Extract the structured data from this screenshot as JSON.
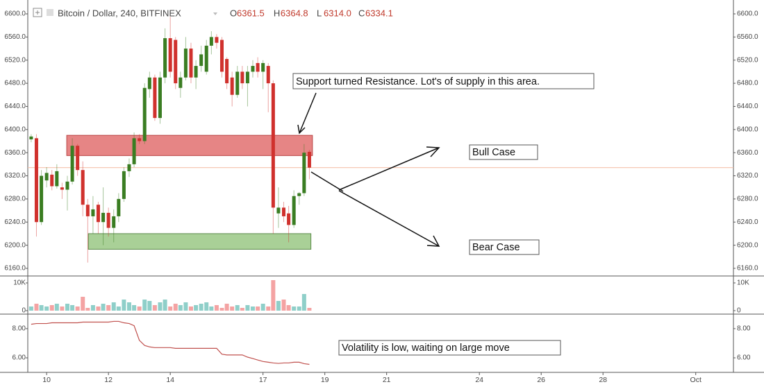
{
  "header": {
    "title": "Bitcoin / Dollar, 240, BITFINEX",
    "ohlc": [
      {
        "label": "O",
        "value": "6361.5"
      },
      {
        "label": "H",
        "value": "6364.8"
      },
      {
        "label": "L",
        "value": "6314.0"
      },
      {
        "label": "C",
        "value": "6334.1"
      }
    ]
  },
  "chart_data": [
    {
      "type": "candlestick",
      "x": [
        9.5,
        9.67,
        9.83,
        10,
        10.17,
        10.33,
        10.5,
        10.67,
        10.83,
        11,
        11.17,
        11.33,
        11.5,
        11.67,
        11.83,
        12,
        12.17,
        12.33,
        12.5,
        12.67,
        12.83,
        13,
        13.17,
        13.33,
        13.5,
        13.67,
        13.83,
        14,
        14.17,
        14.33,
        14.5,
        14.67,
        14.83,
        15,
        15.17,
        15.33,
        15.5,
        15.67,
        15.83,
        16,
        16.17,
        16.33,
        16.5,
        16.67,
        16.83,
        17,
        17.17,
        17.33,
        17.5,
        17.67,
        17.83,
        18,
        18.17,
        18.33,
        18.5
      ],
      "open": [
        6383,
        6385,
        6240,
        6312,
        6322,
        6302,
        6300,
        6296,
        6310,
        6372,
        6330,
        6270,
        6250,
        6270,
        6240,
        6256,
        6230,
        6250,
        6280,
        6328,
        6340,
        6385,
        6380,
        6470,
        6490,
        6420,
        6490,
        6558,
        6555,
        6472,
        6490,
        6540,
        6490,
        6510,
        6500,
        6545,
        6560,
        6555,
        6522,
        6490,
        6460,
        6500,
        6480,
        6500,
        6515,
        6500,
        6510,
        6480,
        6255,
        6265,
        6255,
        6235,
        6285,
        6290,
        6361.5
      ],
      "high": [
        6392,
        6392,
        6330,
        6335,
        6330,
        6340,
        6308,
        6320,
        6385,
        6375,
        6345,
        6280,
        6285,
        6275,
        6300,
        6265,
        6262,
        6290,
        6335,
        6350,
        6395,
        6392,
        6480,
        6500,
        6495,
        6500,
        6575,
        6595,
        6560,
        6500,
        6560,
        6550,
        6520,
        6545,
        6555,
        6570,
        6565,
        6560,
        6525,
        6500,
        6510,
        6510,
        6510,
        6520,
        6525,
        6520,
        6515,
        6485,
        6300,
        6275,
        6268,
        6295,
        6292,
        6375,
        6364.8
      ],
      "low": [
        6378,
        6215,
        6235,
        6300,
        6295,
        6298,
        6280,
        6260,
        6305,
        6320,
        6250,
        6170,
        6220,
        6220,
        6200,
        6215,
        6205,
        6240,
        6275,
        6318,
        6335,
        6375,
        6375,
        6455,
        6415,
        6410,
        6480,
        6490,
        6470,
        6455,
        6485,
        6480,
        6470,
        6500,
        6495,
        6530,
        6540,
        6490,
        6470,
        6440,
        6455,
        6470,
        6440,
        6490,
        6490,
        6470,
        6430,
        6220,
        6230,
        6240,
        6205,
        6230,
        6270,
        6285,
        6314
      ],
      "close": [
        6388,
        6240,
        6320,
        6325,
        6302,
        6328,
        6296,
        6310,
        6372,
        6330,
        6270,
        6250,
        6262,
        6240,
        6256,
        6230,
        6250,
        6280,
        6328,
        6340,
        6385,
        6380,
        6472,
        6490,
        6420,
        6490,
        6558,
        6500,
        6480,
        6490,
        6540,
        6490,
        6510,
        6530,
        6545,
        6560,
        6550,
        6500,
        6480,
        6460,
        6500,
        6480,
        6500,
        6510,
        6500,
        6515,
        6480,
        6265,
        6265,
        6250,
        6235,
        6285,
        6290,
        6360,
        6334.1
      ],
      "up_color": "#3a7d22",
      "down_color": "#d0312d",
      "xlim": [
        9.39,
        32.22
      ],
      "xticks": [
        10,
        12,
        14,
        17,
        19,
        21,
        24,
        26,
        28,
        {
          "value": 31,
          "label": "Oct"
        }
      ],
      "ylim": [
        6148,
        6624
      ],
      "yticks": [
        {
          "value": 6160,
          "label": "6160.0"
        },
        {
          "value": 6200,
          "label": "6200.0"
        },
        {
          "value": 6240,
          "label": "6240.0"
        },
        {
          "value": 6280,
          "label": "6280.0"
        },
        {
          "value": 6320,
          "label": "6320.0"
        },
        {
          "value": 6360,
          "label": "6360.0"
        },
        {
          "value": 6400,
          "label": "6400.0"
        },
        {
          "value": 6440,
          "label": "6440.0"
        },
        {
          "value": 6480,
          "label": "6480.0"
        },
        {
          "value": 6520,
          "label": "6520.0"
        },
        {
          "value": 6560,
          "label": "6560.0"
        },
        {
          "value": 6600,
          "label": "6600.0"
        }
      ],
      "grid": false,
      "last_price": 6334.1,
      "last_price_color": "#f4b9a0",
      "zones": [
        {
          "x": [
            10.65,
            18.6
          ],
          "y": [
            6355,
            6390
          ],
          "color": "#e06666",
          "border": "#b94444"
        },
        {
          "x": [
            11.35,
            18.55
          ],
          "y": [
            6193,
            6220
          ],
          "color": "#93c47d",
          "border": "#5b8a4a"
        }
      ],
      "annotations": [
        "Support turned Resistance. Lot's of supply in this area.",
        "Bull Case",
        "Bear Case"
      ]
    },
    {
      "type": "bar",
      "values": [
        1.5,
        2.5,
        2,
        1.5,
        2,
        2.5,
        1.5,
        2.5,
        2,
        1.5,
        5,
        1,
        2,
        1.5,
        2.5,
        2,
        3,
        1.5,
        4,
        3,
        2,
        1.5,
        4,
        3.5,
        2,
        3,
        4,
        1.5,
        2.5,
        2,
        3,
        1.5,
        2,
        2.5,
        3,
        1.5,
        2,
        1,
        2.5,
        1.5,
        2,
        1,
        2,
        1.5,
        1.5,
        2.5,
        1.5,
        11,
        3.5,
        4,
        2,
        1.5,
        1.5,
        6,
        1
      ],
      "up_color": "#8fcfc9",
      "down_color": "#f4a3a3",
      "ylim": [
        -1,
        12.25
      ],
      "yticks": [
        0,
        {
          "value": 10,
          "label": "10K"
        }
      ]
    },
    {
      "type": "line",
      "values": [
        8.3,
        8.35,
        8.35,
        8.35,
        8.4,
        8.4,
        8.4,
        8.4,
        8.4,
        8.4,
        8.45,
        8.45,
        8.45,
        8.45,
        8.45,
        8.45,
        8.5,
        8.5,
        8.4,
        8.35,
        8.2,
        7.2,
        6.85,
        6.75,
        6.7,
        6.7,
        6.7,
        6.7,
        6.65,
        6.65,
        6.65,
        6.65,
        6.65,
        6.65,
        6.65,
        6.65,
        6.65,
        6.25,
        6.2,
        6.2,
        6.2,
        6.2,
        6.05,
        5.95,
        5.85,
        5.75,
        5.7,
        5.65,
        5.62,
        5.65,
        5.65,
        5.7,
        5.7,
        5.6,
        5.55
      ],
      "color": "#c0504d",
      "ylim": [
        5.1,
        8.9
      ],
      "yticks": [
        {
          "value": 6,
          "label": "6.00"
        },
        {
          "value": 8,
          "label": "8.00"
        }
      ],
      "annotations": [
        "Volatility is low, waiting on large move"
      ]
    }
  ]
}
